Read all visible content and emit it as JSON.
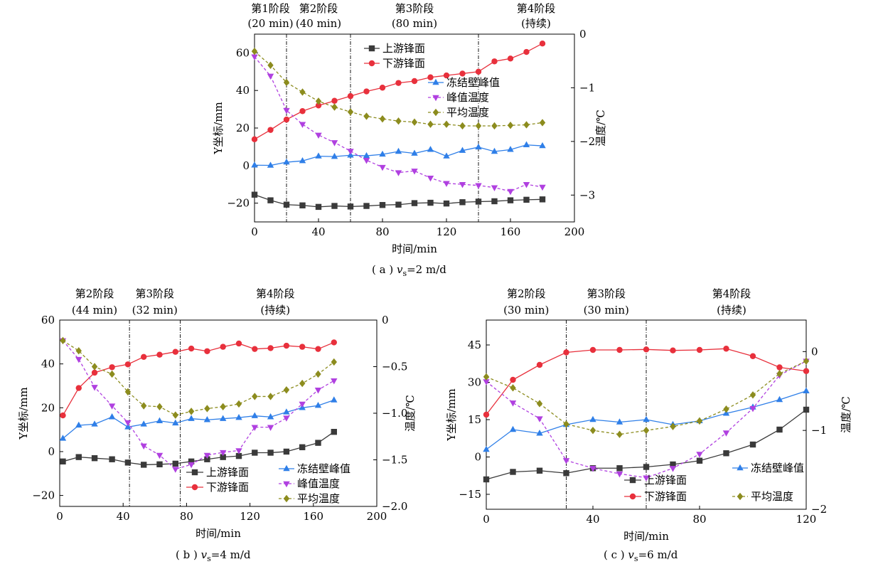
{
  "chart_data": [
    {
      "type": "line",
      "caption_prefix": "( a )",
      "caption_v": "v",
      "caption_sub": "s",
      "caption_suffix": "=2 m/d",
      "xlabel": "时间/min",
      "ylabel": "Y坐标/mm",
      "y2label": "温度/℃",
      "xlim": [
        0,
        200
      ],
      "ylim": [
        -30,
        70
      ],
      "y2lim": [
        -3.5,
        0
      ],
      "xticks": [
        0,
        40,
        80,
        120,
        160,
        200
      ],
      "yticks": [
        -20,
        0,
        20,
        40,
        60
      ],
      "y2ticks": [
        -3,
        -2,
        -1,
        0
      ],
      "stage_lines": [
        20,
        60,
        140
      ],
      "stages": [
        {
          "name": "第1阶段",
          "duration": "(20 min)",
          "x": 10
        },
        {
          "name": "第2阶段",
          "duration": "(40 min)",
          "x": 40
        },
        {
          "name": "第3阶段",
          "duration": "(80 min)",
          "x": 100
        },
        {
          "name": "第4阶段",
          "duration": "(持续)",
          "x": 176
        }
      ],
      "x": [
        0,
        10,
        20,
        30,
        40,
        50,
        60,
        70,
        80,
        90,
        100,
        110,
        120,
        130,
        140,
        150,
        160,
        170,
        180
      ],
      "series": [
        {
          "name": "上游锋面",
          "axis": "left",
          "marker": "square",
          "dash": false,
          "color": "#3a3a3a",
          "values": [
            -15.5,
            -18.5,
            -20.8,
            -21.2,
            -22.0,
            -21.5,
            -21.8,
            -21.5,
            -21.0,
            -20.8,
            -20.0,
            -19.8,
            -20.2,
            -19.5,
            -19.2,
            -19.0,
            -18.5,
            -18.2,
            -18.0
          ]
        },
        {
          "name": "下游锋面",
          "axis": "left",
          "marker": "circle",
          "dash": false,
          "color": "#e8303c",
          "values": [
            14.0,
            19.0,
            24.5,
            29.0,
            32.0,
            34.5,
            37.0,
            39.5,
            41.5,
            44.0,
            45.0,
            47.0,
            48.0,
            49.0,
            50.0,
            55.5,
            57.0,
            60.5,
            65.0
          ]
        },
        {
          "name": "冻结壁峰值",
          "axis": "left",
          "marker": "triangle",
          "dash": false,
          "color": "#2f7fe8",
          "values": [
            0.2,
            0.1,
            1.8,
            2.5,
            5.0,
            4.8,
            5.5,
            5.2,
            6.0,
            7.5,
            6.5,
            8.5,
            5.0,
            8.0,
            9.8,
            7.5,
            8.5,
            11.0,
            10.5
          ]
        },
        {
          "name": "峰值温度",
          "axis": "right",
          "marker": "triangle-down",
          "dash": true,
          "color": "#b040e0",
          "values": [
            -0.42,
            -0.78,
            -1.42,
            -1.68,
            -1.88,
            -2.02,
            -2.18,
            -2.35,
            -2.48,
            -2.58,
            -2.55,
            -2.68,
            -2.78,
            -2.8,
            -2.82,
            -2.86,
            -2.93,
            -2.8,
            -2.85
          ]
        },
        {
          "name": "平均温度",
          "axis": "right",
          "marker": "diamond",
          "dash": true,
          "color": "#8c8c1e",
          "values": [
            -0.32,
            -0.58,
            -0.9,
            -1.08,
            -1.25,
            -1.36,
            -1.45,
            -1.53,
            -1.58,
            -1.62,
            -1.64,
            -1.68,
            -1.68,
            -1.71,
            -1.71,
            -1.71,
            -1.7,
            -1.69,
            -1.65
          ]
        }
      ]
    },
    {
      "type": "line",
      "caption_prefix": "( b )",
      "caption_v": "v",
      "caption_sub": "s",
      "caption_suffix": "=4 m/d",
      "xlabel": "时间/min",
      "ylabel": "Y坐标/mm",
      "y2label": "温度/℃",
      "xlim": [
        0,
        200
      ],
      "ylim": [
        -25,
        60
      ],
      "y2lim": [
        -2.0,
        0
      ],
      "xticks": [
        0,
        40,
        80,
        120,
        160,
        200
      ],
      "yticks": [
        -20,
        0,
        20,
        40,
        60
      ],
      "y2ticks": [
        -2.0,
        -1.5,
        -1.0,
        -0.5,
        0
      ],
      "y2ticklabels": [
        "-2.0",
        "-1.5",
        "-1.0",
        "-0.5",
        "0"
      ],
      "stage_lines": [
        44,
        76
      ],
      "stages": [
        {
          "name": "第2阶段",
          "duration": "(44 min)",
          "x": 22
        },
        {
          "name": "第3阶段",
          "duration": "(32 min)",
          "x": 60
        },
        {
          "name": "第4阶段",
          "duration": "(持续)",
          "x": 136
        }
      ],
      "x": [
        2,
        12,
        22,
        33,
        43,
        53,
        63,
        73,
        83,
        93,
        103,
        113,
        123,
        133,
        143,
        153,
        163,
        173
      ],
      "series": [
        {
          "name": "上游锋面",
          "axis": "left",
          "marker": "square",
          "dash": false,
          "color": "#3a3a3a",
          "values": [
            -4.5,
            -2.5,
            -3.0,
            -3.5,
            -5.0,
            -6.0,
            -5.8,
            -5.5,
            -4.5,
            -3.5,
            -2.5,
            -2.0,
            -0.5,
            -0.5,
            0.0,
            2.0,
            4.0,
            9.0
          ]
        },
        {
          "name": "下游锋面",
          "axis": "left",
          "marker": "circle",
          "dash": false,
          "color": "#e8303c",
          "values": [
            16.5,
            29.0,
            36.0,
            38.5,
            39.8,
            43.2,
            44.2,
            45.5,
            47.0,
            45.8,
            47.8,
            49.3,
            46.8,
            47.2,
            48.3,
            47.8,
            46.8,
            49.8
          ]
        },
        {
          "name": "冻结壁峰值",
          "axis": "left",
          "marker": "triangle",
          "dash": false,
          "color": "#2f7fe8",
          "values": [
            6.0,
            12.0,
            12.5,
            15.8,
            11.2,
            12.5,
            14.0,
            13.0,
            15.0,
            14.5,
            15.0,
            15.5,
            16.3,
            15.8,
            18.0,
            20.0,
            21.0,
            23.5
          ]
        },
        {
          "name": "峰值温度",
          "axis": "right",
          "marker": "triangle-down",
          "dash": true,
          "color": "#b040e0",
          "values": [
            -0.22,
            -0.42,
            -0.72,
            -0.92,
            -1.1,
            -1.35,
            -1.45,
            -1.6,
            -1.55,
            -1.45,
            -1.42,
            -1.4,
            -1.15,
            -1.15,
            -1.05,
            -0.9,
            -0.75,
            -0.65
          ]
        },
        {
          "name": "平均温度",
          "axis": "right",
          "marker": "diamond",
          "dash": true,
          "color": "#8c8c1e",
          "values": [
            -0.22,
            -0.33,
            -0.5,
            -0.58,
            -0.77,
            -0.92,
            -0.93,
            -1.02,
            -0.98,
            -0.95,
            -0.93,
            -0.9,
            -0.82,
            -0.82,
            -0.75,
            -0.68,
            -0.58,
            -0.45
          ]
        }
      ]
    },
    {
      "type": "line",
      "caption_prefix": "( c )",
      "caption_v": "v",
      "caption_sub": "s",
      "caption_suffix": "=6 m/d",
      "xlabel": "时间/min",
      "ylabel": "Y坐标/mm",
      "y2label": "温度/℃",
      "xlim": [
        0,
        120
      ],
      "ylim": [
        -21,
        55
      ],
      "y2lim": [
        -2,
        0.4
      ],
      "xticks": [
        0,
        40,
        80,
        120
      ],
      "yticks": [
        -15,
        0,
        15,
        30,
        45
      ],
      "y2ticks": [
        -2,
        -1,
        0
      ],
      "stage_lines": [
        30,
        60
      ],
      "stages": [
        {
          "name": "第2阶段",
          "duration": "(30 min)",
          "x": 15
        },
        {
          "name": "第3阶段",
          "duration": "(30 min)",
          "x": 45
        },
        {
          "name": "第4阶段",
          "duration": "(持续)",
          "x": 92
        }
      ],
      "x": [
        0,
        10,
        20,
        30,
        40,
        50,
        60,
        70,
        80,
        90,
        100,
        110,
        120
      ],
      "series": [
        {
          "name": "上游锋面",
          "axis": "left",
          "marker": "square",
          "dash": false,
          "color": "#3a3a3a",
          "values": [
            -9.0,
            -6.0,
            -5.5,
            -6.5,
            -4.5,
            -4.5,
            -4.0,
            -3.0,
            -1.5,
            1.5,
            5.0,
            11.0,
            19.0
          ]
        },
        {
          "name": "下游锋面",
          "axis": "left",
          "marker": "circle",
          "dash": false,
          "color": "#e8303c",
          "values": [
            17.0,
            31.0,
            37.0,
            42.0,
            43.0,
            43.0,
            43.2,
            42.8,
            43.0,
            43.5,
            40.5,
            36.0,
            34.5
          ]
        },
        {
          "name": "冻结壁峰值",
          "axis": "left",
          "marker": "triangle",
          "dash": false,
          "color": "#2f7fe8",
          "values": [
            3.0,
            11.0,
            9.5,
            13.0,
            15.0,
            14.0,
            15.0,
            13.0,
            14.5,
            17.5,
            20.0,
            23.0,
            26.5
          ]
        },
        {
          "name": "峰值温度",
          "axis": "right",
          "marker": "triangle-down",
          "dash": true,
          "color": "#b040e0",
          "values": [
            -0.38,
            -0.65,
            -0.85,
            -1.38,
            -1.48,
            -1.55,
            -1.6,
            -1.48,
            -1.3,
            -1.03,
            -0.72,
            -0.3,
            -0.12
          ]
        },
        {
          "name": "平均温度",
          "axis": "right",
          "marker": "diamond",
          "dash": true,
          "color": "#8c8c1e",
          "values": [
            -0.32,
            -0.46,
            -0.66,
            -0.92,
            -1.0,
            -1.05,
            -1.0,
            -0.95,
            -0.88,
            -0.73,
            -0.55,
            -0.28,
            -0.12
          ]
        }
      ]
    }
  ]
}
